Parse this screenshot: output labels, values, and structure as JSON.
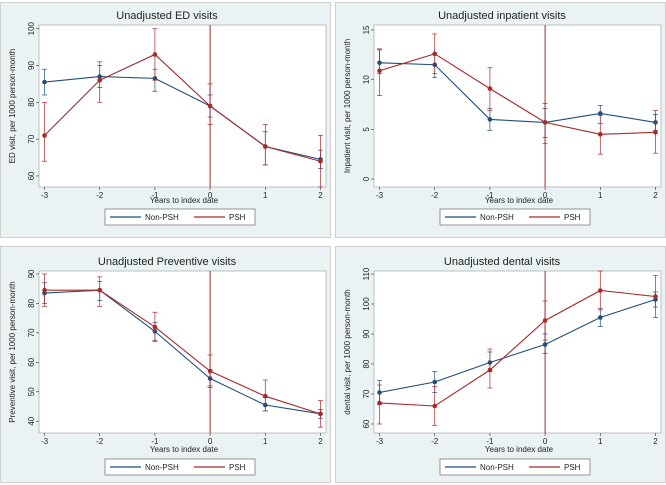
{
  "colors": {
    "non_psh": "#1f4e79",
    "psh": "#a52a2a",
    "index_line": "#a52a2a",
    "panel_bg": "#eaf2f3",
    "plot_bg": "#ffffff"
  },
  "chart_data": [
    {
      "type": "line",
      "title": "Unadjusted ED visits",
      "xlabel": "Years to index date",
      "ylabel": "ED visit, per 1000 person-month",
      "x": [
        -3,
        -2,
        -1,
        0,
        1,
        2
      ],
      "x_ticks": [
        "-3",
        "-2",
        "-1",
        "0",
        "1",
        "2"
      ],
      "y_ticks": [
        "60",
        "70",
        "80",
        "90",
        "100"
      ],
      "ylim": [
        57,
        101
      ],
      "xlim": [
        -3.1,
        2.1
      ],
      "index_line_x": 0,
      "legend": [
        "Non-PSH",
        "PSH"
      ],
      "legend_position": "bottom",
      "series": [
        {
          "name": "Non-PSH",
          "values": [
            85.5,
            87,
            86.5,
            79,
            68,
            64.5
          ],
          "lower": [
            82,
            84,
            83,
            76,
            63,
            62
          ],
          "upper": [
            89,
            90,
            89,
            82,
            72,
            67
          ]
        },
        {
          "name": "PSH",
          "values": [
            71,
            86,
            93,
            79,
            68,
            64
          ],
          "lower": [
            64,
            80,
            86,
            74,
            63,
            57
          ],
          "upper": [
            80,
            91,
            100,
            85,
            74,
            71
          ]
        }
      ]
    },
    {
      "type": "line",
      "title": "Unadjusted inpatient visits",
      "xlabel": "Years to index date",
      "ylabel": "Inpatient visit, per 1000 person-month",
      "x": [
        -3,
        -2,
        -1,
        0,
        1,
        2
      ],
      "x_ticks": [
        "-3",
        "-2",
        "-1",
        "0",
        "1",
        "2"
      ],
      "y_ticks": [
        "0",
        "5",
        "10",
        "15"
      ],
      "ylim": [
        -0.8,
        15.5
      ],
      "xlim": [
        -3.1,
        2.1
      ],
      "index_line_x": 0,
      "legend": [
        "Non-PSH",
        "PSH"
      ],
      "legend_position": "bottom",
      "series": [
        {
          "name": "Non-PSH",
          "values": [
            11.7,
            11.5,
            6,
            5.7,
            6.6,
            5.7
          ],
          "lower": [
            10.6,
            10.2,
            4.9,
            4.2,
            5.6,
            4.9
          ],
          "upper": [
            13,
            12.6,
            7.1,
            7.1,
            7.4,
            6.5
          ]
        },
        {
          "name": "PSH",
          "values": [
            10.9,
            12.6,
            9.1,
            5.7,
            4.5,
            4.7
          ],
          "lower": [
            8.4,
            10.6,
            6.9,
            3.6,
            2.5,
            2.6
          ],
          "upper": [
            13.1,
            14.6,
            11.2,
            7.6,
            6.4,
            6.9
          ]
        }
      ]
    },
    {
      "type": "line",
      "title": "Unadjusted Preventive visits",
      "xlabel": "Years to index date",
      "ylabel": "Preventive visit, per 1000 person-month",
      "x": [
        -3,
        -2,
        -1,
        0,
        1,
        2
      ],
      "x_ticks": [
        "-3",
        "-2",
        "-1",
        "0",
        "1",
        "2"
      ],
      "y_ticks": [
        "40",
        "50",
        "60",
        "70",
        "80",
        "90"
      ],
      "ylim": [
        36,
        91
      ],
      "xlim": [
        -3.1,
        2.1
      ],
      "index_line_x": 0,
      "legend": [
        "Non-PSH",
        "PSH"
      ],
      "legend_position": "bottom",
      "series": [
        {
          "name": "Non-PSH",
          "values": [
            83.5,
            84.5,
            70.5,
            54.5,
            45.5,
            42.5
          ],
          "lower": [
            80,
            81,
            67.5,
            51.5,
            43.5,
            41
          ],
          "upper": [
            87,
            87.5,
            73.5,
            57.5,
            48,
            44
          ]
        },
        {
          "name": "PSH",
          "values": [
            84.5,
            84.5,
            72,
            57,
            48.5,
            42.5
          ],
          "lower": [
            79,
            79,
            67,
            52,
            43.5,
            38
          ],
          "upper": [
            90,
            89,
            77,
            62.5,
            54,
            47
          ]
        }
      ]
    },
    {
      "type": "line",
      "title": "Unadjusted dental visits",
      "xlabel": "Years to index date",
      "ylabel": "dental visit, per 1000 person-month",
      "x": [
        -3,
        -2,
        -1,
        0,
        1,
        2
      ],
      "x_ticks": [
        "-3",
        "-2",
        "-1",
        "0",
        "1",
        "2"
      ],
      "y_ticks": [
        "60",
        "70",
        "80",
        "90",
        "100",
        "110"
      ],
      "ylim": [
        57,
        111
      ],
      "xlim": [
        -3.1,
        2.1
      ],
      "index_line_x": 0,
      "legend": [
        "Non-PSH",
        "PSH"
      ],
      "legend_position": "bottom",
      "series": [
        {
          "name": "Non-PSH",
          "values": [
            70.5,
            74,
            80.5,
            86.5,
            95.5,
            101.5
          ],
          "lower": [
            66.5,
            70.5,
            77.5,
            83.5,
            92.5,
            99
          ],
          "upper": [
            74.5,
            77.5,
            84,
            90,
            98.5,
            104
          ]
        },
        {
          "name": "PSH",
          "values": [
            67,
            66,
            78,
            94.5,
            104.5,
            102.5
          ],
          "lower": [
            60,
            59.5,
            72,
            88,
            98,
            95.5
          ],
          "upper": [
            73,
            72.5,
            85,
            101,
            111,
            109.5
          ]
        }
      ]
    }
  ]
}
